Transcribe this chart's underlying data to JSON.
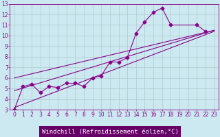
{
  "xlabel": "Windchill (Refroidissement éolien,°C)",
  "bg_color": "#cce8f0",
  "grid_color": "#aacccc",
  "line_color": "#880088",
  "xlim": [
    -0.5,
    23.5
  ],
  "ylim": [
    3,
    13
  ],
  "xticks": [
    0,
    1,
    2,
    3,
    4,
    5,
    6,
    7,
    8,
    9,
    10,
    11,
    12,
    13,
    14,
    15,
    16,
    17,
    18,
    19,
    20,
    21,
    22,
    23
  ],
  "yticks": [
    3,
    4,
    5,
    6,
    7,
    8,
    9,
    10,
    11,
    12,
    13
  ],
  "line1_x": [
    0,
    1,
    2,
    3,
    4,
    5,
    6,
    7,
    8,
    9,
    10,
    11,
    12,
    13,
    14,
    15,
    16,
    17,
    18,
    21,
    22
  ],
  "line1_y": [
    3.0,
    5.2,
    5.4,
    4.6,
    5.2,
    5.1,
    5.5,
    5.5,
    5.2,
    6.0,
    6.2,
    7.5,
    7.5,
    7.9,
    10.2,
    11.3,
    12.2,
    12.6,
    11.0,
    11.0,
    10.4
  ],
  "line2_x": [
    0,
    23
  ],
  "line2_y": [
    3.2,
    10.4
  ],
  "line3_x": [
    0,
    23
  ],
  "line3_y": [
    4.8,
    10.5
  ],
  "line4_x": [
    0,
    23
  ],
  "line4_y": [
    6.0,
    10.5
  ],
  "marker": "D",
  "markersize": 2.5,
  "lw": 0.8,
  "xlabel_fontsize": 6.5,
  "tick_fontsize": 5.5,
  "xlabel_color": "#ffffff",
  "xlabel_bg": "#660066"
}
